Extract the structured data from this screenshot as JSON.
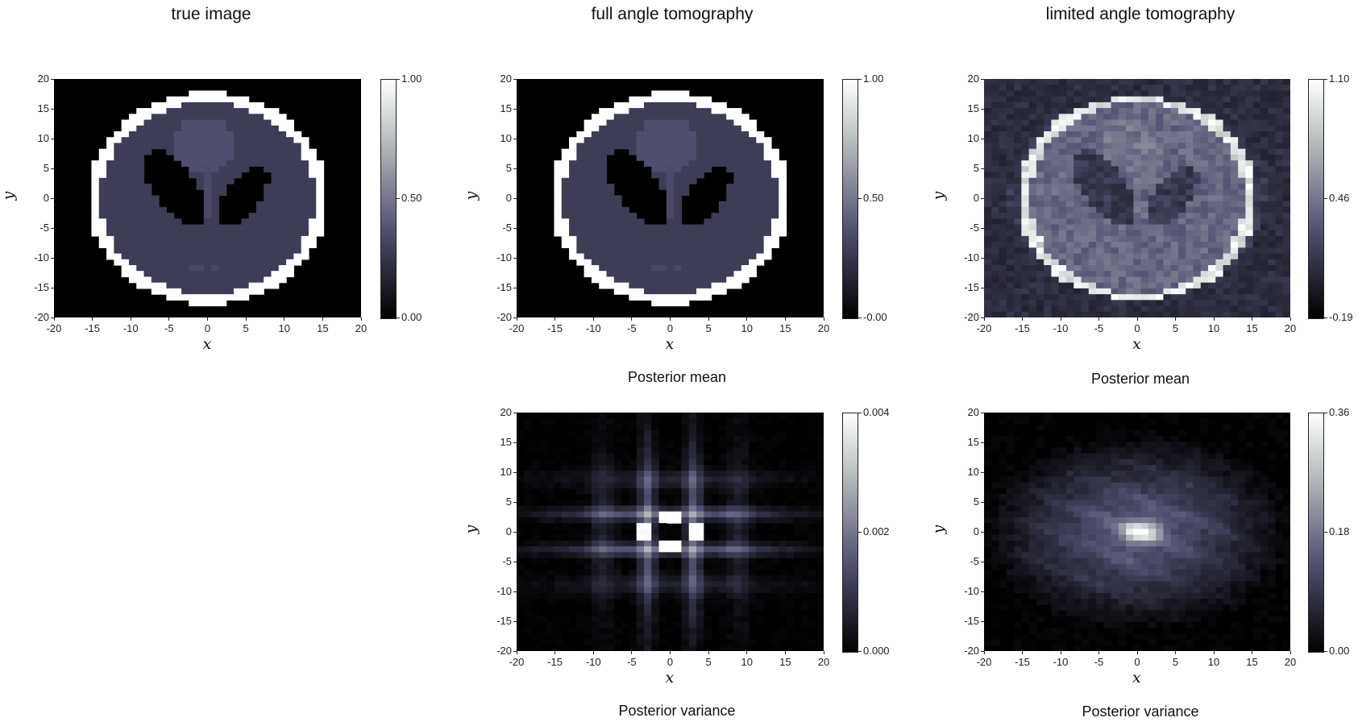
{
  "column_titles": {
    "true_image": "true image",
    "full_angle": "full angle tomography",
    "limited_angle": "limited angle tomography"
  },
  "captions": {
    "full_mean": "Posterior mean",
    "limited_mean": "Posterior mean",
    "full_variance": "Posterior variance",
    "limited_variance": "Posterior variance"
  },
  "colors": {
    "colormap": "bone",
    "dark": "#000000",
    "mid": "#4d4c6e",
    "light": "#ffffff"
  },
  "chart_data": [
    {
      "id": "true-image",
      "type": "heatmap",
      "field": "phantom",
      "xlabel": "x",
      "ylabel": "y",
      "xlim": [
        -20,
        20
      ],
      "ylim": [
        -20,
        20
      ],
      "xticks": [
        -20,
        -15,
        -10,
        -5,
        0,
        5,
        10,
        15,
        20
      ],
      "yticks": [
        20,
        15,
        10,
        5,
        0,
        -5,
        -10,
        -15,
        -20
      ],
      "colorbar": {
        "min": 0.0,
        "max": 1.0,
        "ticks": [
          "1.00",
          "0.50",
          "0.00"
        ]
      }
    },
    {
      "id": "full-mean",
      "type": "heatmap",
      "field": "phantom",
      "xlabel": "x",
      "ylabel": "y",
      "xlim": [
        -20,
        20
      ],
      "ylim": [
        -20,
        20
      ],
      "xticks": [
        -20,
        -15,
        -10,
        -5,
        0,
        5,
        10,
        15,
        20
      ],
      "yticks": [
        20,
        15,
        10,
        5,
        0,
        -5,
        -10,
        -15,
        -20
      ],
      "colorbar": {
        "min": 0.0,
        "max": 1.0,
        "ticks": [
          "1.00",
          "0.50",
          "-0.00"
        ]
      }
    },
    {
      "id": "limited-mean",
      "type": "heatmap",
      "field": "noisy_phantom",
      "xlabel": "x",
      "ylabel": "y",
      "xlim": [
        -20,
        20
      ],
      "ylim": [
        -20,
        20
      ],
      "xticks": [
        -20,
        -15,
        -10,
        -5,
        0,
        5,
        10,
        15,
        20
      ],
      "yticks": [
        20,
        15,
        10,
        5,
        0,
        -5,
        -10,
        -15,
        -20
      ],
      "colorbar": {
        "min": -0.19,
        "max": 1.1,
        "ticks": [
          "1.10",
          "0.46",
          "-0.19"
        ]
      }
    },
    {
      "id": "full-variance",
      "type": "heatmap",
      "field": "cross_variance",
      "xlabel": "x",
      "ylabel": "y",
      "xlim": [
        -20,
        20
      ],
      "ylim": [
        -20,
        20
      ],
      "xticks": [
        -20,
        -15,
        -10,
        -5,
        0,
        5,
        10,
        15,
        20
      ],
      "yticks": [
        20,
        15,
        10,
        5,
        0,
        -5,
        -10,
        -15,
        -20
      ],
      "colorbar": {
        "min": 0.0,
        "max": 0.004,
        "ticks": [
          "0.004",
          "0.002",
          "0.000"
        ]
      }
    },
    {
      "id": "limited-variance",
      "type": "heatmap",
      "field": "ellipse_variance",
      "xlabel": "x",
      "ylabel": "y",
      "xlim": [
        -20,
        20
      ],
      "ylim": [
        -20,
        20
      ],
      "xticks": [
        -20,
        -15,
        -10,
        -5,
        0,
        5,
        10,
        15,
        20
      ],
      "yticks": [
        20,
        15,
        10,
        5,
        0,
        -5,
        -10,
        -15,
        -20
      ],
      "colorbar": {
        "min": 0.0,
        "max": 0.36,
        "ticks": [
          "0.36",
          "0.18",
          "0.00"
        ]
      }
    }
  ]
}
